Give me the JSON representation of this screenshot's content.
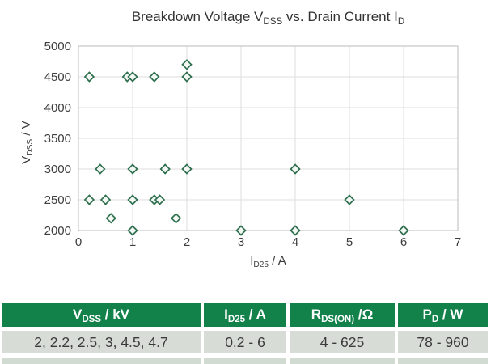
{
  "title": {
    "pre": "Breakdown Voltage V",
    "sub1": "DSS",
    "mid": " vs. Drain Current I",
    "sub2": "D"
  },
  "chart_data": {
    "type": "scatter",
    "title": "Breakdown Voltage V_DSS vs. Drain Current I_D",
    "xlabel": {
      "pre": "I",
      "sub": "D25",
      "post": " / A"
    },
    "ylabel": {
      "pre": "V",
      "sub": "DSS",
      "post": " / V"
    },
    "xlim": [
      0,
      7
    ],
    "ylim": [
      2000,
      5000
    ],
    "xticks": [
      0,
      1,
      2,
      3,
      4,
      5,
      6,
      7
    ],
    "yticks": [
      2000,
      2500,
      3000,
      3500,
      4000,
      4500,
      5000
    ],
    "grid": true,
    "legend": "none",
    "marker": {
      "shape": "diamond",
      "stroke": "#2E6F4E",
      "fill": "#F3F8F4"
    },
    "grid_color": "#DEDEDE",
    "border_color": "#C6C6C6",
    "points": [
      [
        0.2,
        4500
      ],
      [
        0.9,
        4500
      ],
      [
        1.0,
        4500
      ],
      [
        1.4,
        4500
      ],
      [
        2,
        4500
      ],
      [
        2,
        4700
      ],
      [
        0.4,
        3000
      ],
      [
        1,
        3000
      ],
      [
        1.6,
        3000
      ],
      [
        2,
        3000
      ],
      [
        4,
        3000
      ],
      [
        0.2,
        2500
      ],
      [
        0.5,
        2500
      ],
      [
        1,
        2500
      ],
      [
        1.4,
        2500
      ],
      [
        1.5,
        2500
      ],
      [
        5,
        2500
      ],
      [
        0.6,
        2200
      ],
      [
        1.8,
        2200
      ],
      [
        1,
        2000
      ],
      [
        3,
        2000
      ],
      [
        4,
        2000
      ],
      [
        6,
        2000
      ]
    ]
  },
  "table": {
    "header_bg": "#12814A",
    "row_bg": "#D7DCD7",
    "partial_row_bg": "#D2DBD2",
    "headers": [
      {
        "pre": "V",
        "sub": "DSS",
        "post": " / kV"
      },
      {
        "pre": "I",
        "sub": "D25",
        "post": " / A"
      },
      {
        "pre": "R",
        "sub": "DS(ON)",
        "post": " /Ω"
      },
      {
        "pre": "P",
        "sub": "D",
        "post": " / W"
      }
    ],
    "row": [
      "2, 2.2, 2.5, 3, 4.5, 4.7",
      "0.2 - 6",
      "4 - 625",
      "78 - 960"
    ]
  }
}
